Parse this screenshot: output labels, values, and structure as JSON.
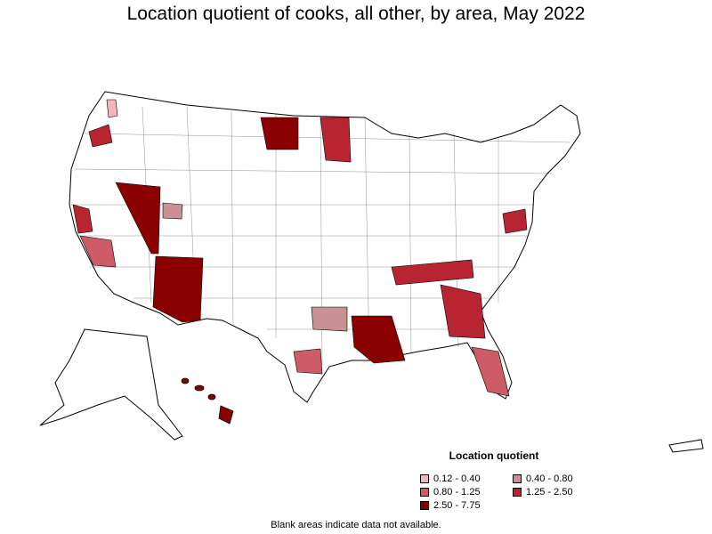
{
  "title": "Location quotient of cooks, all other, by area, May 2022",
  "footnote": "Blank areas indicate data not available.",
  "legend": {
    "title": "Location quotient",
    "items": [
      {
        "label": "0.12 - 0.40",
        "color": "#f4b6bd"
      },
      {
        "label": "0.40 - 0.80",
        "color": "#c99096"
      },
      {
        "label": "0.80 - 1.25",
        "color": "#cd5c66"
      },
      {
        "label": "1.25 - 2.50",
        "color": "#b8242f"
      },
      {
        "label": "2.50 - 7.75",
        "color": "#8b0000"
      }
    ]
  },
  "colors": {
    "no_data": "#ffffff",
    "border": "#000000"
  },
  "shaded_areas": [
    {
      "area": "Nevada",
      "class": "2.50 - 7.75"
    },
    {
      "area": "Arizona",
      "class": "2.50 - 7.75"
    },
    {
      "area": "Eastern Montana",
      "class": "2.50 - 7.75"
    },
    {
      "area": "Louisiana",
      "class": "2.50 - 7.75"
    },
    {
      "area": "Hawaii",
      "class": "2.50 - 7.75"
    },
    {
      "area": "Tennessee",
      "class": "1.25 - 2.50"
    },
    {
      "area": "North Dakota",
      "class": "1.25 - 2.50"
    },
    {
      "area": "Georgia",
      "class": "1.25 - 2.50"
    },
    {
      "area": "Northern Oregon",
      "class": "1.25 - 2.50"
    },
    {
      "area": "Maryland",
      "class": "1.25 - 2.50"
    },
    {
      "area": "Northern California",
      "class": "1.25 - 2.50"
    },
    {
      "area": "Southern California",
      "class": "0.80 - 1.25"
    },
    {
      "area": "Florida",
      "class": "0.80 - 1.25"
    },
    {
      "area": "Texas",
      "class": "0.80 - 1.25"
    },
    {
      "area": "Oklahoma",
      "class": "0.40 - 0.80"
    },
    {
      "area": "Colorado",
      "class": "0.40 - 0.80"
    },
    {
      "area": "Washington",
      "class": "0.12 - 0.40"
    }
  ]
}
